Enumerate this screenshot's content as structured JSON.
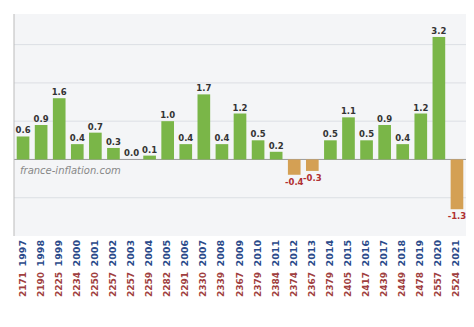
{
  "chart_data": {
    "type": "bar",
    "categories": [
      "1997",
      "1998",
      "1999",
      "2000",
      "2001",
      "2002",
      "2003",
      "2004",
      "2005",
      "2006",
      "2007",
      "2008",
      "2009",
      "2010",
      "2011",
      "2012",
      "2013",
      "2014",
      "2015",
      "2016",
      "2017",
      "2018",
      "2019",
      "2020",
      "2021"
    ],
    "values": [
      0.6,
      0.9,
      1.6,
      0.4,
      0.7,
      0.3,
      0.0,
      0.1,
      1.0,
      0.4,
      1.7,
      0.4,
      1.2,
      0.5,
      0.2,
      -0.4,
      -0.3,
      0.5,
      1.1,
      0.5,
      0.9,
      0.4,
      1.2,
      3.2,
      -1.3
    ],
    "value_labels": [
      "0.6",
      "0.9",
      "1.6",
      "0.4",
      "0.7",
      "0.3",
      "0.0",
      "0.1",
      "1.0",
      "0.4",
      "1.7",
      "0.4",
      "1.2",
      "0.5",
      "0.2",
      "-0.4",
      "-0.3",
      "0.5",
      "1.1",
      "0.5",
      "0.9",
      "0.4",
      "1.2",
      "3.2",
      "-1.3"
    ],
    "colors": [
      "#7ab648",
      "#7ab648",
      "#7ab648",
      "#7ab648",
      "#7ab648",
      "#7ab648",
      "#7ab648",
      "#7ab648",
      "#7ab648",
      "#7ab648",
      "#7ab648",
      "#7ab648",
      "#7ab648",
      "#7ab648",
      "#7ab648",
      "#d4a054",
      "#d4a054",
      "#7ab648",
      "#7ab648",
      "#7ab648",
      "#7ab648",
      "#7ab648",
      "#7ab648",
      "#7ab648",
      "#d4a054"
    ],
    "salaries": [
      "2171",
      "2190",
      "2225",
      "2234",
      "2250",
      "2257",
      "2257",
      "2259",
      "2282",
      "2291",
      "2330",
      "2339",
      "2367",
      "2379",
      "2384",
      "2374",
      "2367",
      "2379",
      "2405",
      "2417",
      "2439",
      "2449",
      "2478",
      "2557",
      "2524"
    ],
    "watermark": "france-inflation.com",
    "ylim": [
      -2.0,
      3.8
    ],
    "yticks": [
      -1,
      0,
      1,
      2,
      3
    ],
    "grid": true,
    "data_labels": true,
    "tick_labels": "x"
  }
}
